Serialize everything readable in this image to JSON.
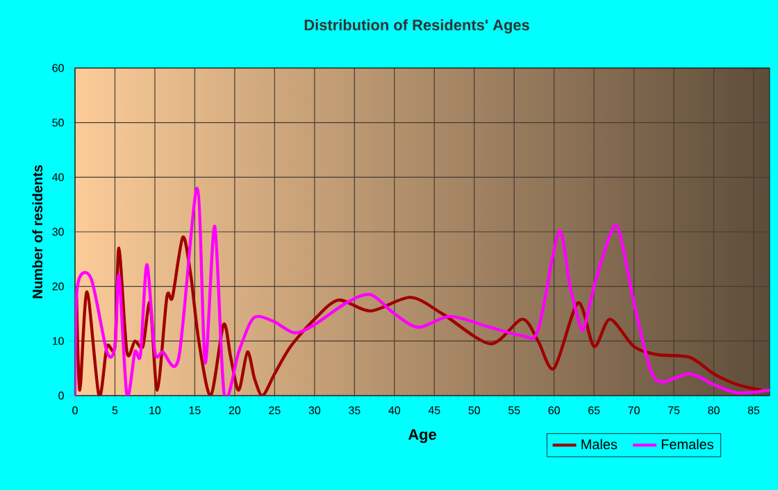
{
  "chart_data": {
    "type": "line",
    "title": "Distribution of Residents' Ages",
    "xlabel": "Age",
    "ylabel": "Number of residents",
    "xlim": [
      0,
      87
    ],
    "xticks": [
      0,
      5,
      10,
      15,
      20,
      25,
      30,
      35,
      40,
      45,
      50,
      55,
      60,
      65,
      70,
      75,
      80,
      85
    ],
    "ylim": [
      0,
      60
    ],
    "yticks": [
      0,
      10,
      20,
      30,
      40,
      50,
      60
    ],
    "grid": true,
    "legend": "bottom right",
    "marker": "none",
    "line_style": "solid",
    "series": [
      {
        "name": "Males",
        "color": "#a00000",
        "x": [
          0.2,
          0.6,
          1.5,
          3,
          4,
          5,
          5.5,
          6.5,
          7.5,
          8.5,
          9.4,
          10.3,
          11.5,
          12.2,
          13.5,
          14.5,
          15.5,
          17,
          18.6,
          19.5,
          20.5,
          21.6,
          22.5,
          23.5,
          25,
          27,
          30,
          33,
          37,
          42,
          46,
          52,
          56,
          58,
          60,
          63,
          65,
          67,
          70,
          73,
          77,
          80,
          83,
          86
        ],
        "values": [
          18,
          1,
          19,
          0,
          9,
          9,
          27,
          8,
          10,
          9,
          17,
          1,
          18,
          18,
          29,
          22,
          10,
          0,
          13,
          7,
          1,
          8,
          3,
          0,
          4,
          9,
          14,
          17.5,
          15.5,
          18,
          15,
          9.5,
          14,
          10,
          5,
          17,
          9,
          14,
          9,
          7.5,
          7,
          4,
          2,
          1
        ]
      },
      {
        "name": "Females",
        "color": "#ff00ff",
        "x": [
          0,
          0.3,
          2,
          4,
          5,
          5.5,
          6.5,
          7.5,
          8.2,
          9,
          10,
          11,
          13,
          15.3,
          16.3,
          17.5,
          18.7,
          20.5,
          22,
          23,
          25,
          27.5,
          30,
          34,
          37,
          40,
          43,
          47,
          52,
          56,
          58,
          60.6,
          62,
          63.5,
          64.5,
          66,
          67.9,
          70,
          72,
          73.5,
          77,
          80,
          83,
          87
        ],
        "values": [
          0,
          20,
          21.5,
          8,
          9,
          22,
          0,
          8,
          7.5,
          24,
          8,
          8,
          7,
          38,
          6,
          31,
          0,
          8,
          13.5,
          14.5,
          13.5,
          11.5,
          13,
          17,
          18.5,
          15,
          12.5,
          14.5,
          12.5,
          11,
          12,
          30,
          20,
          12,
          17,
          25,
          31,
          17,
          5,
          2.5,
          4,
          2,
          0.5,
          1
        ]
      }
    ]
  }
}
